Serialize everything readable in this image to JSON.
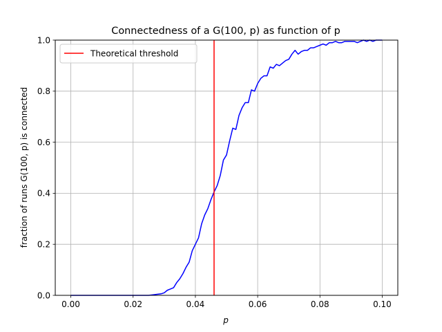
{
  "chart_data": {
    "type": "line",
    "title": "Connectedness of a G(100, p) as function of p",
    "xlabel": "p",
    "ylabel": "fraction of runs G(100, p) is connected",
    "xlim": [
      -0.005,
      0.105
    ],
    "ylim": [
      0.0,
      1.0
    ],
    "xticks": [
      0.0,
      0.02,
      0.04,
      0.06,
      0.08,
      0.1
    ],
    "xtick_labels": [
      "0.00",
      "0.02",
      "0.04",
      "0.06",
      "0.08",
      "0.10"
    ],
    "yticks": [
      0.0,
      0.2,
      0.4,
      0.6,
      0.8,
      1.0
    ],
    "ytick_labels": [
      "0.0",
      "0.2",
      "0.4",
      "0.6",
      "0.8",
      "1.0"
    ],
    "grid": true,
    "legend": {
      "placement": "upper-left",
      "entries": [
        "Theoretical threshold"
      ]
    },
    "threshold": {
      "name": "Theoretical threshold",
      "x": 0.046,
      "color": "#ff0000"
    },
    "series": [
      {
        "color": "#0000ff",
        "x": [
          0.0,
          0.01,
          0.02,
          0.025,
          0.027,
          0.029,
          0.03,
          0.031,
          0.032,
          0.033,
          0.034,
          0.035,
          0.036,
          0.037,
          0.038,
          0.039,
          0.04,
          0.041,
          0.042,
          0.043,
          0.044,
          0.045,
          0.046,
          0.047,
          0.048,
          0.049,
          0.05,
          0.051,
          0.052,
          0.053,
          0.054,
          0.055,
          0.056,
          0.057,
          0.058,
          0.059,
          0.06,
          0.061,
          0.062,
          0.063,
          0.064,
          0.065,
          0.066,
          0.067,
          0.068,
          0.069,
          0.07,
          0.071,
          0.072,
          0.073,
          0.074,
          0.075,
          0.076,
          0.077,
          0.078,
          0.079,
          0.08,
          0.081,
          0.082,
          0.083,
          0.084,
          0.085,
          0.086,
          0.087,
          0.088,
          0.089,
          0.09,
          0.091,
          0.092,
          0.093,
          0.094,
          0.095,
          0.096,
          0.097,
          0.098,
          0.099,
          0.1
        ],
        "y": [
          0.0,
          0.0,
          0.0,
          0.0,
          0.003,
          0.006,
          0.01,
          0.02,
          0.025,
          0.03,
          0.05,
          0.065,
          0.085,
          0.11,
          0.13,
          0.175,
          0.2,
          0.225,
          0.28,
          0.315,
          0.34,
          0.375,
          0.405,
          0.43,
          0.47,
          0.53,
          0.55,
          0.605,
          0.655,
          0.65,
          0.705,
          0.735,
          0.755,
          0.755,
          0.805,
          0.8,
          0.83,
          0.85,
          0.86,
          0.86,
          0.895,
          0.89,
          0.905,
          0.9,
          0.91,
          0.92,
          0.925,
          0.945,
          0.96,
          0.945,
          0.955,
          0.96,
          0.96,
          0.97,
          0.97,
          0.975,
          0.98,
          0.985,
          0.98,
          0.99,
          0.99,
          0.995,
          0.99,
          0.99,
          0.995,
          0.995,
          0.995,
          0.995,
          0.99,
          0.995,
          1.0,
          0.995,
          1.0,
          0.995,
          1.0,
          1.0,
          1.0
        ]
      }
    ]
  }
}
